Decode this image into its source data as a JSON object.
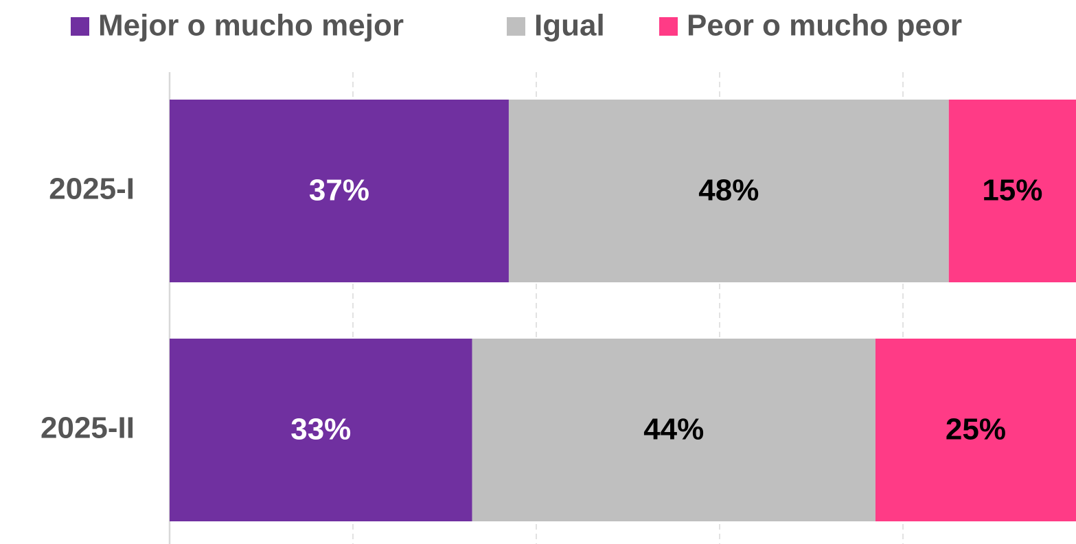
{
  "chart_data": {
    "type": "stacked-barh",
    "categories": [
      "2025-I",
      "2025-II"
    ],
    "series": [
      {
        "name": "Mejor o mucho mejor",
        "color": "#7030a0",
        "label_color": "#ffffff",
        "values": [
          37,
          33
        ],
        "value_labels": [
          "37%",
          "33%"
        ]
      },
      {
        "name": "Igual",
        "color": "#bfbfbf",
        "label_color": "#000000",
        "values": [
          48,
          44
        ],
        "value_labels": [
          "48%",
          "44%"
        ]
      },
      {
        "name": "Peor o mucho peor",
        "color": "#ff3b86",
        "label_color": "#000000",
        "values": [
          15,
          25
        ],
        "value_labels": [
          "15%",
          "25%"
        ]
      }
    ],
    "xlim": [
      0,
      100
    ],
    "xticks": [
      20,
      40,
      60,
      80
    ],
    "grid": true,
    "legend": "top"
  }
}
